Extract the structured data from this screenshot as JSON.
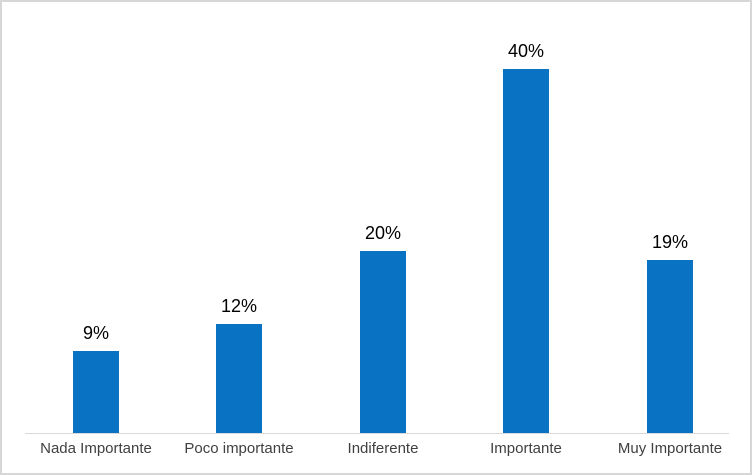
{
  "window": {
    "background_color": "#ffffff",
    "border_color": "#d7d7d7"
  },
  "chart_data": {
    "type": "bar",
    "title": "",
    "xlabel": "",
    "ylabel": "",
    "categories": [
      "Nada Importante",
      "Poco importante",
      "Indiferente",
      "Importante",
      "Muy Importante"
    ],
    "values": [
      9,
      12,
      20,
      40,
      19
    ],
    "data_labels": [
      "9%",
      "12%",
      "20%",
      "40%",
      "19%"
    ],
    "ylim": [
      0,
      45
    ],
    "grid": false,
    "legend": false,
    "y_axis_visible": false,
    "x_axis_line_visible": true,
    "bar_color": "#0a72c3",
    "data_label_color": "#000000",
    "category_label_color": "#404040",
    "axis_line_color": "#d9d9d9"
  }
}
